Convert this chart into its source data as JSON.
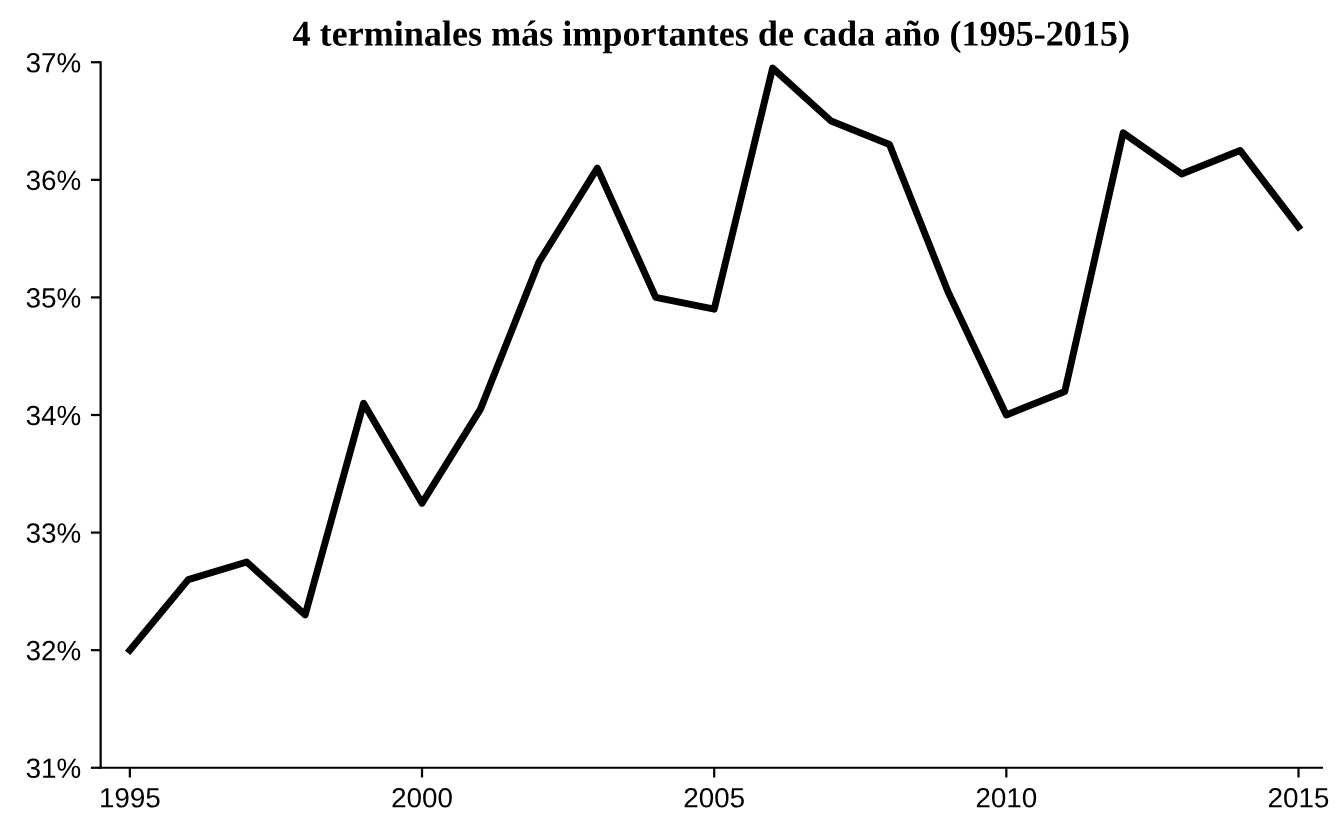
{
  "chart_data": {
    "type": "line",
    "title": "4 terminales más importantes de cada año (1995-2015)",
    "x": [
      1995,
      1996,
      1997,
      1998,
      1999,
      2000,
      2001,
      2002,
      2003,
      2004,
      2005,
      2006,
      2007,
      2008,
      2009,
      2010,
      2011,
      2012,
      2013,
      2014,
      2015
    ],
    "series": [
      {
        "color": "#000000",
        "values": [
          32.0,
          32.6,
          32.75,
          32.3,
          34.1,
          33.25,
          34.05,
          35.3,
          36.1,
          35.0,
          34.9,
          36.95,
          36.5,
          36.3,
          35.05,
          34.0,
          34.2,
          36.4,
          36.05,
          36.25,
          35.6
        ]
      }
    ],
    "xlim": [
      1994.5,
      2015.4
    ],
    "xticks": [
      1995,
      2000,
      2005,
      2010,
      2015
    ],
    "ylim": [
      31,
      37
    ],
    "yticks": [
      {
        "value": 31,
        "label": "31%"
      },
      {
        "value": 32,
        "label": "32%"
      },
      {
        "value": 33,
        "label": "33%"
      },
      {
        "value": 34,
        "label": "34%"
      },
      {
        "value": 35,
        "label": "35%"
      },
      {
        "value": 36,
        "label": "36%"
      },
      {
        "value": 37,
        "label": "37%"
      }
    ],
    "grid": false,
    "marker": "none",
    "line_style": "solid"
  }
}
